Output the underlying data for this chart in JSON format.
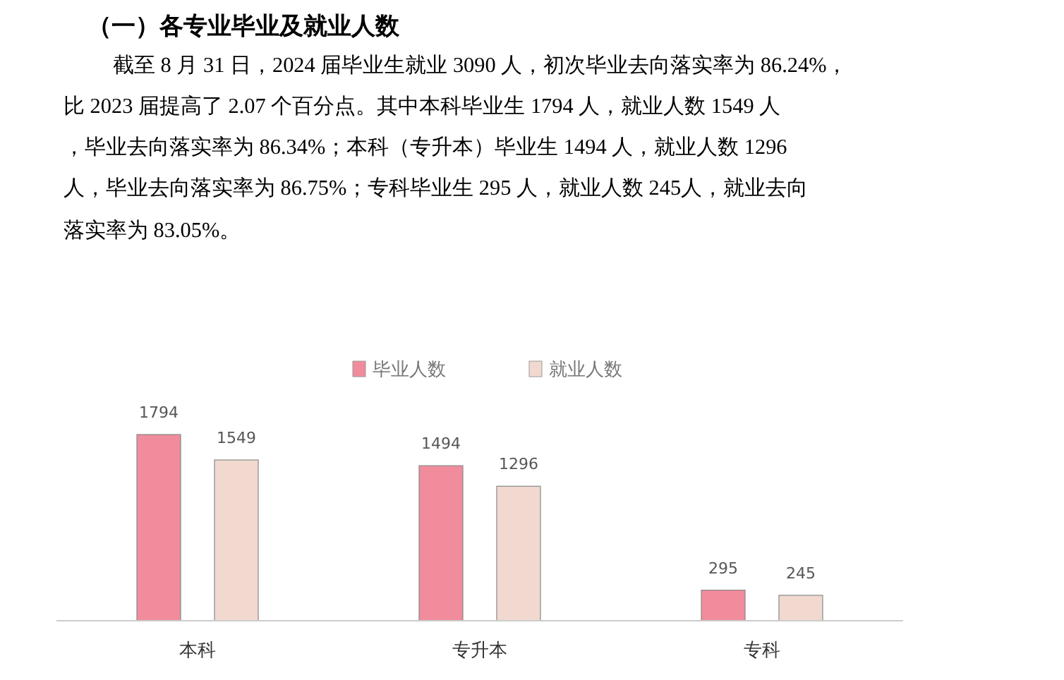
{
  "chart_data": {
    "type": "bar",
    "title": "（一）各专业毕业及就业人数",
    "annotations": [
      "截至 8 月 31 日，2024 届毕业生就业 3090 人，初次毕业去向落实率为 86.24%，",
      "比 2023 届提高了 2.07 个百分点。其中本科毕业生 1794 人，就业人数 1549 人",
      "，毕业去向落实率为 86.34%；本科（专升本）毕业生 1494 人，就业人数 1296",
      "人，毕业去向落实率为 86.75%；专科毕业生 295 人，就业人数 245人，就业去向",
      "落实率为 83.05%。"
    ],
    "categories": [
      "本科",
      "专升本",
      "专科"
    ],
    "series": [
      {
        "name": "毕业人数",
        "color": "#f08c9c",
        "values": [
          1794,
          1494,
          295
        ]
      },
      {
        "name": "就业人数",
        "color": "#f1d9cf",
        "values": [
          1549,
          1296,
          245
        ]
      }
    ],
    "data_labels": true,
    "legend": "top",
    "grid": false
  }
}
